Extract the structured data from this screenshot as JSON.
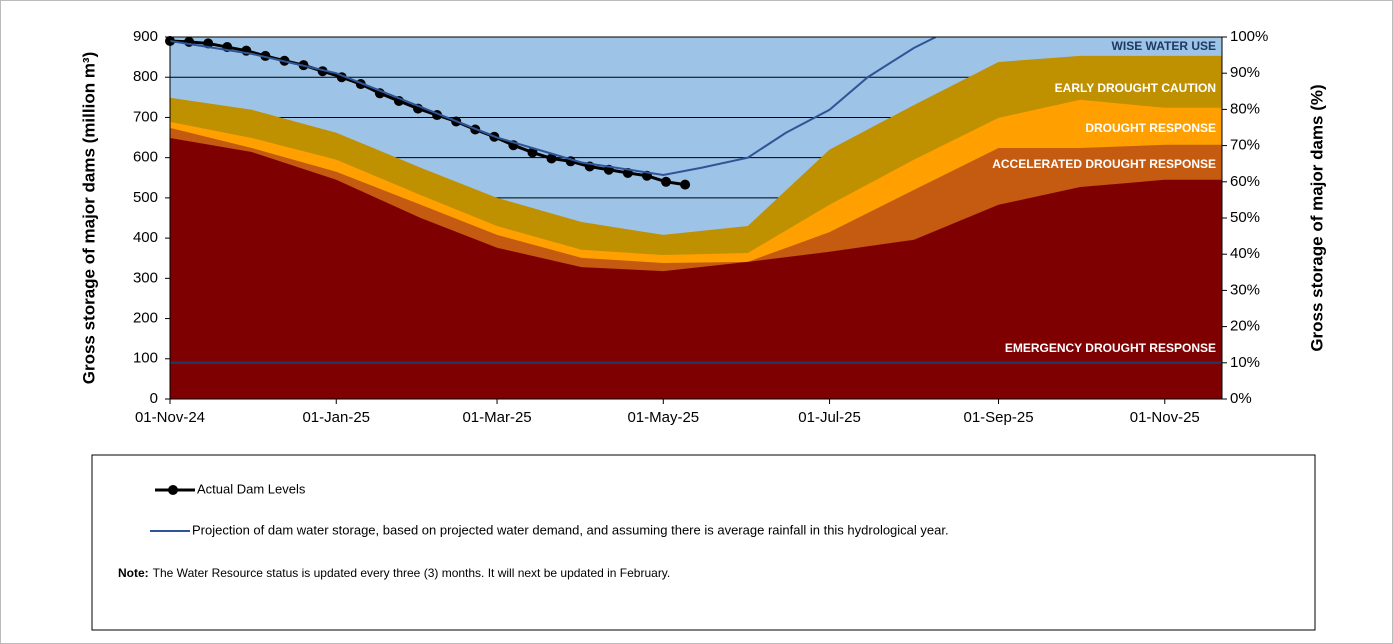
{
  "chart_data": {
    "type": "area",
    "y_axis_label": "Gross storage of major dams (million m³)",
    "y2_axis_label": "Gross storage of major dams (%)",
    "xlim": [
      "2024-11-01",
      "2025-11-22"
    ],
    "xticks": [
      {
        "value": "2024-11-01",
        "label": "01-Nov-24"
      },
      {
        "value": "2025-01-01",
        "label": "01-Jan-25"
      },
      {
        "value": "2025-03-01",
        "label": "01-Mar-25"
      },
      {
        "value": "2025-05-01",
        "label": "01-May-25"
      },
      {
        "value": "2025-07-01",
        "label": "01-Jul-25"
      },
      {
        "value": "2025-09-01",
        "label": "01-Sep-25"
      },
      {
        "value": "2025-11-01",
        "label": "01-Nov-25"
      }
    ],
    "ylim": [
      0,
      900
    ],
    "yticks": [
      0,
      100,
      200,
      300,
      400,
      500,
      600,
      700,
      800,
      900
    ],
    "y2lim": [
      0,
      100
    ],
    "y2ticks": [
      {
        "value": 0,
        "label": "0%"
      },
      {
        "value": 10,
        "label": "10%"
      },
      {
        "value": 20,
        "label": "20%"
      },
      {
        "value": 30,
        "label": "30%"
      },
      {
        "value": 40,
        "label": "40%"
      },
      {
        "value": 50,
        "label": "50%"
      },
      {
        "value": 60,
        "label": "60%"
      },
      {
        "value": 70,
        "label": "70%"
      },
      {
        "value": 80,
        "label": "80%"
      },
      {
        "value": 90,
        "label": "90%"
      },
      {
        "value": 100,
        "label": "100%"
      }
    ],
    "grid": true,
    "x": [
      "2024-11-01",
      "2024-12-01",
      "2025-01-01",
      "2025-02-01",
      "2025-03-01",
      "2025-04-01",
      "2025-05-01",
      "2025-06-01",
      "2025-07-01",
      "2025-08-01",
      "2025-09-01",
      "2025-10-01",
      "2025-11-01",
      "2025-11-22"
    ],
    "series": [
      {
        "name": "WISE WATER USE",
        "color": "#9dc3e6",
        "label_color": "#1f3864",
        "values": [
          900,
          900,
          900,
          900,
          900,
          900,
          900,
          900,
          900,
          900,
          900,
          900,
          900,
          900
        ]
      },
      {
        "name": "EARLY DROUGHT CAUTION",
        "color": "#bf9000",
        "label_color": "#ffffff",
        "values": [
          749,
          719,
          662,
          575,
          500,
          440,
          408,
          430,
          620,
          731,
          838,
          853,
          853,
          853
        ]
      },
      {
        "name": "DROUGHT RESPONSE",
        "color": "#ffa000",
        "label_color": "#ffffff",
        "values": [
          689,
          649,
          595,
          507,
          430,
          371,
          358,
          363,
          483,
          595,
          699,
          744,
          724,
          724
        ]
      },
      {
        "name": "ACCELERATED DROUGHT RESPONSE",
        "color": "#c55a11",
        "label_color": "#ffffff",
        "values": [
          674,
          624,
          565,
          483,
          408,
          351,
          338,
          341,
          415,
          520,
          624,
          624,
          632,
          632
        ]
      },
      {
        "name": "EMERGENCY DROUGHT RESPONSE",
        "color": "#7f0000",
        "label_color": "#ffffff",
        "values": [
          649,
          614,
          545,
          450,
          376,
          328,
          318,
          341,
          366,
          396,
          483,
          527,
          545,
          545
        ]
      }
    ],
    "reference_line": {
      "value": 10,
      "axis": "y2",
      "color": "#1f3864"
    },
    "lines": [
      {
        "name": "Actual Dam Levels",
        "color": "#000000",
        "marker": true,
        "x": [
          "2024-11-01",
          "2024-11-08",
          "2024-11-15",
          "2024-11-22",
          "2024-11-29",
          "2024-12-06",
          "2024-12-13",
          "2024-12-20",
          "2024-12-27",
          "2025-01-03",
          "2025-01-10",
          "2025-01-17",
          "2025-01-24",
          "2025-01-31",
          "2025-02-07",
          "2025-02-14",
          "2025-02-21",
          "2025-02-28",
          "2025-03-07",
          "2025-03-14",
          "2025-03-21",
          "2025-03-28",
          "2025-04-04",
          "2025-04-11",
          "2025-04-18",
          "2025-04-25",
          "2025-05-02",
          "2025-05-09"
        ],
        "values": [
          890,
          888,
          884,
          875,
          866,
          853,
          841,
          830,
          815,
          800,
          783,
          760,
          741,
          722,
          706,
          690,
          670,
          652,
          631,
          613,
          598,
          591,
          578,
          570,
          562,
          555,
          540,
          533
        ]
      },
      {
        "name": "Projection of dam water storage, based on projected water demand, and assuming there is average rainfall in this hydrological year.",
        "color": "#2f5597",
        "marker": false,
        "x": [
          "2024-11-01",
          "2024-12-01",
          "2025-01-01",
          "2025-02-01",
          "2025-03-01",
          "2025-04-01",
          "2025-05-01",
          "2025-05-15",
          "2025-06-01",
          "2025-06-15",
          "2025-07-01",
          "2025-07-15",
          "2025-08-01",
          "2025-08-09"
        ],
        "values": [
          890,
          858,
          810,
          726,
          650,
          588,
          557,
          575,
          600,
          662,
          719,
          800,
          873,
          900
        ]
      }
    ],
    "note_label": "Note:",
    "note": "The Water Resource status is updated every three (3) months. It will next be updated in February."
  }
}
